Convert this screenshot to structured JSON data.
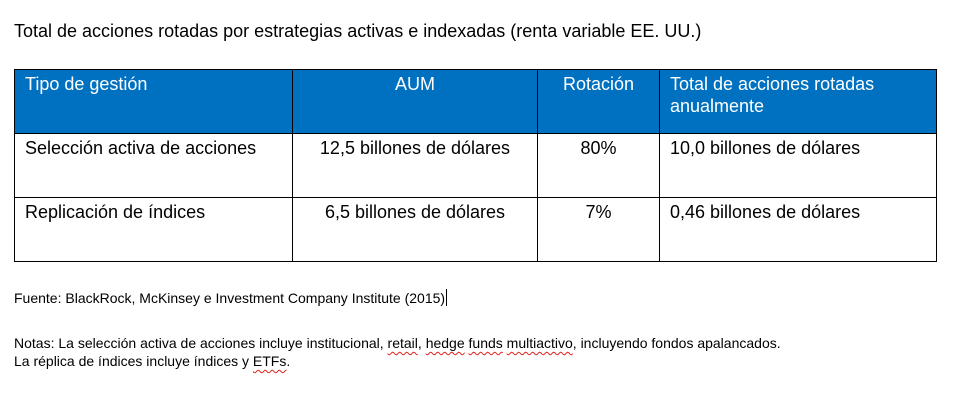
{
  "document": {
    "title": "Total de acciones rotadas por estrategias activas e indexadas (renta variable EE. UU.)"
  },
  "table": {
    "headers": [
      "Tipo de gestión",
      "AUM",
      "Rotación",
      "Total de acciones rotadas anualmente"
    ],
    "rows": [
      [
        "Selección activa de acciones",
        "12,5 billones de dólares",
        "80%",
        "10,0 billones de dólares"
      ],
      [
        "Replicación de índices",
        "6,5 billones de dólares",
        "7%",
        "0,46 billones de dólares"
      ]
    ],
    "header_color": "#0070c0"
  },
  "source": {
    "text": "Fuente: BlackRock, McKinsey e Investment Company Institute (2015)"
  },
  "notes": {
    "line1": {
      "p1": "Notas: La selección activa de acciones incluye institucional, ",
      "w1": "retail",
      "p2": ", ",
      "w2": "hedge",
      "p3": " ",
      "w3": "funds",
      "p4": " ",
      "w4": "multiactivo",
      "p5": ", incluyendo fondos apalancados."
    },
    "line2": {
      "p1": "La réplica de índices incluye índices y ",
      "w1": "ETFs",
      "p2": "."
    }
  },
  "colors": {
    "header_bg": "#0070c0",
    "spellcheck_underline": "#e0201b"
  }
}
